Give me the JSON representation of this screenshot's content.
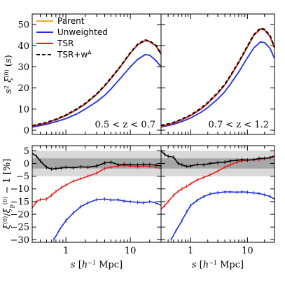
{
  "chart_data": {
    "type": "line",
    "x_axis": {
      "label": "s [h^{-1} Mpc]",
      "scale": "log",
      "range": [
        0.3,
        30
      ],
      "tick_labels": [
        "1",
        "10"
      ]
    },
    "colors": {
      "Parent": "#f5a623",
      "Unweighted": "#1f2fe0",
      "TSR": "#e8221c",
      "TSR+w^A": "#000000"
    },
    "legend": {
      "position": "top-left",
      "entries": [
        "Parent",
        "Unweighted",
        "TSR",
        "TSR+w^A"
      ]
    },
    "top_panels": {
      "ylabel": "s^2 ξ^(0)(s)",
      "ylim": [
        -2,
        55
      ],
      "ytick_labels": [
        "0",
        "10",
        "20",
        "30",
        "40",
        "50"
      ],
      "x": [
        0.3,
        0.4,
        0.5,
        0.7,
        1.0,
        1.5,
        2.0,
        3.0,
        4.0,
        5.0,
        7.0,
        10.0,
        13.0,
        17.0,
        20.0,
        25.0,
        30.0
      ],
      "panels": [
        {
          "annotation": "0.5 < z < 0.7",
          "series": [
            {
              "name": "Parent",
              "values": [
                2.0,
                2.8,
                3.5,
                5.0,
                7.0,
                10.0,
                12.5,
                17.0,
                21.0,
                24.5,
                30.0,
                36.5,
                40.5,
                42.5,
                42.0,
                40.0,
                36.0
              ]
            },
            {
              "name": "Unweighted",
              "values": [
                1.5,
                2.2,
                2.8,
                4.0,
                5.5,
                7.8,
                10.0,
                13.5,
                16.5,
                19.5,
                24.5,
                30.0,
                33.5,
                35.8,
                35.5,
                33.0,
                30.0
              ]
            },
            {
              "name": "TSR",
              "values": [
                1.9,
                2.7,
                3.4,
                4.9,
                6.9,
                9.9,
                12.4,
                16.9,
                20.9,
                24.4,
                29.9,
                36.4,
                40.4,
                42.4,
                41.9,
                39.9,
                35.9
              ]
            },
            {
              "name": "TSR+w^A",
              "values": [
                2.2,
                3.0,
                3.7,
                5.2,
                7.2,
                10.2,
                12.7,
                17.2,
                21.2,
                24.7,
                30.2,
                36.7,
                40.7,
                42.7,
                42.2,
                40.2,
                36.2
              ]
            }
          ]
        },
        {
          "annotation": "0.7 < z < 1.2",
          "series": [
            {
              "name": "Parent",
              "values": [
                2.0,
                2.7,
                3.4,
                5.0,
                7.0,
                10.0,
                12.8,
                17.5,
                21.5,
                25.5,
                32.0,
                39.5,
                45.0,
                48.0,
                47.5,
                44.5,
                39.0
              ]
            },
            {
              "name": "Unweighted",
              "values": [
                1.6,
                2.2,
                2.8,
                4.1,
                5.8,
                8.4,
                10.7,
                14.8,
                18.3,
                21.8,
                27.5,
                34.3,
                39.0,
                41.8,
                41.5,
                38.8,
                34.0
              ]
            },
            {
              "name": "TSR",
              "values": [
                1.9,
                2.6,
                3.3,
                4.9,
                6.9,
                9.9,
                12.7,
                17.4,
                21.4,
                25.4,
                31.9,
                39.4,
                44.9,
                47.9,
                47.4,
                44.4,
                38.9
              ]
            },
            {
              "name": "TSR+w^A",
              "values": [
                2.3,
                3.0,
                3.7,
                5.3,
                7.3,
                10.3,
                13.1,
                17.8,
                21.8,
                25.8,
                32.3,
                39.8,
                45.3,
                48.3,
                47.8,
                44.8,
                39.3
              ]
            }
          ]
        }
      ]
    },
    "bottom_panels": {
      "ylabel": "ξ^(0) / ξ_p^(0) − 1 [%]",
      "ylim": [
        -31,
        7
      ],
      "ytick_labels": [
        "5",
        "0",
        "−5",
        "−10",
        "−15",
        "−20",
        "−25",
        "−30"
      ],
      "bands": [
        {
          "from": -5,
          "to": 5,
          "color": "#d9d9d9"
        },
        {
          "from": -2,
          "to": 2,
          "color": "#a6a6a6"
        }
      ],
      "panels": [
        {
          "series": [
            {
              "name": "Unweighted",
              "x": [
                0.65,
                0.8,
                1.0,
                1.3,
                1.7,
                2.2,
                3.0,
                4.0,
                5.0,
                6.5,
                8.0,
                10.0,
                13.0,
                16.0,
                20.0,
                25.0,
                30.0
              ],
              "values": [
                -30.0,
                -26.0,
                -22.5,
                -19.5,
                -17.0,
                -15.5,
                -14.2,
                -14.0,
                -14.4,
                -14.3,
                -14.8,
                -15.0,
                -15.3,
                -15.5,
                -15.0,
                -15.5,
                -16.5
              ]
            },
            {
              "name": "TSR",
              "x": [
                0.3,
                0.35,
                0.4,
                0.5,
                0.6,
                0.7,
                0.85,
                1.0,
                1.3,
                1.7,
                2.2,
                3.0,
                4.0,
                5.0,
                6.5,
                8.0,
                10.0,
                13.0,
                16.0,
                20.0,
                25.0,
                30.0
              ],
              "values": [
                -17.5,
                -15.0,
                -14.2,
                -14.0,
                -12.5,
                -11.0,
                -9.5,
                -8.5,
                -7.0,
                -6.0,
                -5.0,
                -3.8,
                -2.0,
                -1.5,
                -1.0,
                -0.8,
                -1.0,
                -1.3,
                -1.0,
                -1.2,
                -1.5,
                -2.0
              ]
            },
            {
              "name": "TSR+w^A",
              "x": [
                0.3,
                0.35,
                0.4,
                0.5,
                0.6,
                0.7,
                0.85,
                1.0,
                1.3,
                1.7,
                2.2,
                3.0,
                4.0,
                5.0,
                6.5,
                8.0,
                10.0,
                13.0,
                16.0,
                20.0,
                25.0,
                30.0
              ],
              "values": [
                4.0,
                2.8,
                1.0,
                -1.5,
                -2.2,
                -2.0,
                -1.8,
                -1.5,
                -1.7,
                -1.3,
                -1.5,
                -1.0,
                0.2,
                0.5,
                -0.5,
                -0.3,
                -0.4,
                -0.6,
                -0.3,
                -0.4,
                -0.7,
                -1.0
              ]
            }
          ]
        },
        {
          "series": [
            {
              "name": "Unweighted",
              "x": [
                0.45,
                0.55,
                0.7,
                0.85,
                1.0,
                1.3,
                1.7,
                2.2,
                3.0,
                4.0,
                5.0,
                6.5,
                8.0,
                10.0,
                13.0,
                16.0,
                20.0,
                25.0,
                30.0
              ],
              "values": [
                -30.0,
                -26.5,
                -22.5,
                -19.0,
                -16.5,
                -14.5,
                -13.0,
                -12.0,
                -11.5,
                -11.2,
                -11.2,
                -11.3,
                -11.2,
                -11.3,
                -11.6,
                -11.8,
                -12.3,
                -13.0,
                -14.0
              ]
            },
            {
              "name": "TSR",
              "x": [
                0.3,
                0.35,
                0.4,
                0.5,
                0.6,
                0.7,
                0.85,
                1.0,
                1.3,
                1.7,
                2.2,
                3.0,
                4.0,
                5.0,
                6.5,
                8.0,
                10.0,
                13.0,
                16.0,
                20.0,
                25.0,
                30.0
              ],
              "values": [
                -18.0,
                -16.5,
                -15.0,
                -12.5,
                -11.0,
                -10.0,
                -9.0,
                -8.0,
                -6.5,
                -5.5,
                -4.5,
                -3.0,
                -1.5,
                -0.5,
                0.5,
                1.0,
                1.3,
                1.5,
                1.5,
                2.0,
                2.2,
                2.5
              ]
            },
            {
              "name": "TSR+w^A",
              "x": [
                0.3,
                0.35,
                0.4,
                0.5,
                0.6,
                0.7,
                0.85,
                1.0,
                1.3,
                1.7,
                2.2,
                3.0,
                4.0,
                5.0,
                6.5,
                8.0,
                10.0,
                13.0,
                16.0,
                20.0,
                25.0,
                30.0
              ],
              "values": [
                5.0,
                3.5,
                2.8,
                2.5,
                0.0,
                -0.5,
                -1.2,
                -1.0,
                -0.4,
                -0.5,
                0.0,
                0.3,
                0.5,
                1.0,
                1.2,
                1.5,
                1.3,
                1.5,
                2.0,
                2.0,
                2.3,
                3.0
              ]
            }
          ]
        }
      ]
    }
  }
}
